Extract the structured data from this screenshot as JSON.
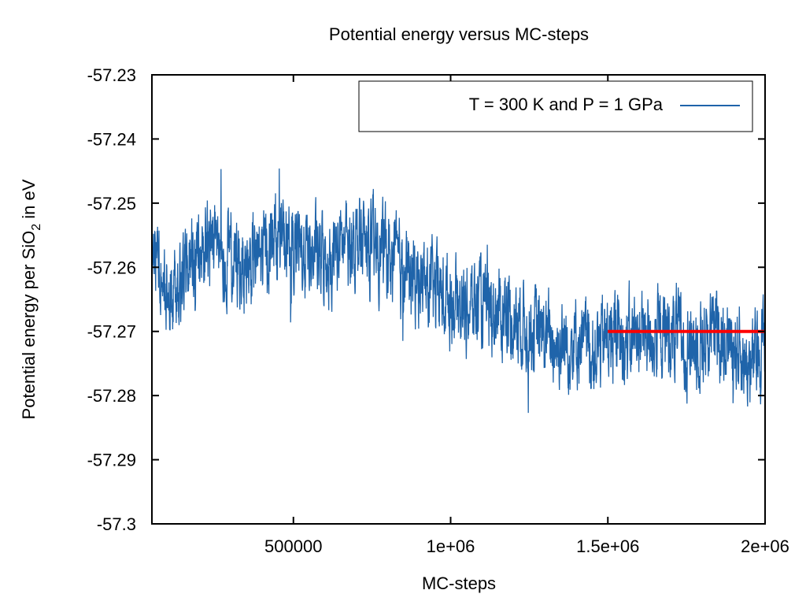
{
  "chart_data": {
    "type": "line",
    "title": "Potential energy versus MC-steps",
    "xlabel": "MC-steps",
    "ylabel": {
      "prefix": "Potential energy per SiO",
      "subscript": "2",
      "suffix": " in eV"
    },
    "xlim": [
      50000,
      2000000
    ],
    "ylim": [
      -57.3,
      -57.23
    ],
    "x_ticks": [
      {
        "value": 500000,
        "label": "500000"
      },
      {
        "value": 1000000,
        "label": "1e+06"
      },
      {
        "value": 1500000,
        "label": "1.5e+06"
      },
      {
        "value": 2000000,
        "label": "2e+06"
      }
    ],
    "y_ticks": [
      {
        "value": -57.23,
        "label": "-57.23"
      },
      {
        "value": -57.24,
        "label": "-57.24"
      },
      {
        "value": -57.25,
        "label": "-57.25"
      },
      {
        "value": -57.26,
        "label": "-57.26"
      },
      {
        "value": -57.27,
        "label": "-57.27"
      },
      {
        "value": -57.28,
        "label": "-57.28"
      },
      {
        "value": -57.29,
        "label": "-57.29"
      },
      {
        "value": -57.3,
        "label": "-57.3"
      }
    ],
    "grid": false,
    "legend_position": "top-right",
    "series": [
      {
        "name": "T = 300 K and P = 1 GPa",
        "color": "#1f64aa",
        "x": [
          50000,
          100000,
          150000,
          200000,
          250000,
          300000,
          350000,
          400000,
          450000,
          500000,
          550000,
          600000,
          650000,
          700000,
          750000,
          800000,
          850000,
          900000,
          950000,
          1000000,
          1050000,
          1100000,
          1150000,
          1200000,
          1250000,
          1300000,
          1350000,
          1400000,
          1450000,
          1500000,
          1550000,
          1600000,
          1650000,
          1700000,
          1750000,
          1800000,
          1850000,
          1900000,
          1950000,
          2000000
        ],
        "y": [
          -57.259,
          -57.262,
          -57.261,
          -57.257,
          -57.256,
          -57.259,
          -57.26,
          -57.258,
          -57.255,
          -57.257,
          -57.258,
          -57.259,
          -57.257,
          -57.256,
          -57.257,
          -57.258,
          -57.261,
          -57.262,
          -57.264,
          -57.265,
          -57.266,
          -57.266,
          -57.267,
          -57.268,
          -57.269,
          -57.271,
          -57.272,
          -57.271,
          -57.273,
          -57.271,
          -57.272,
          -57.27,
          -57.271,
          -57.27,
          -57.272,
          -57.271,
          -57.27,
          -57.271,
          -57.276,
          -57.271
        ]
      },
      {
        "color": "#ff0000",
        "x": [
          1500000,
          2000000
        ],
        "y": [
          -57.27,
          -57.27
        ]
      }
    ]
  }
}
